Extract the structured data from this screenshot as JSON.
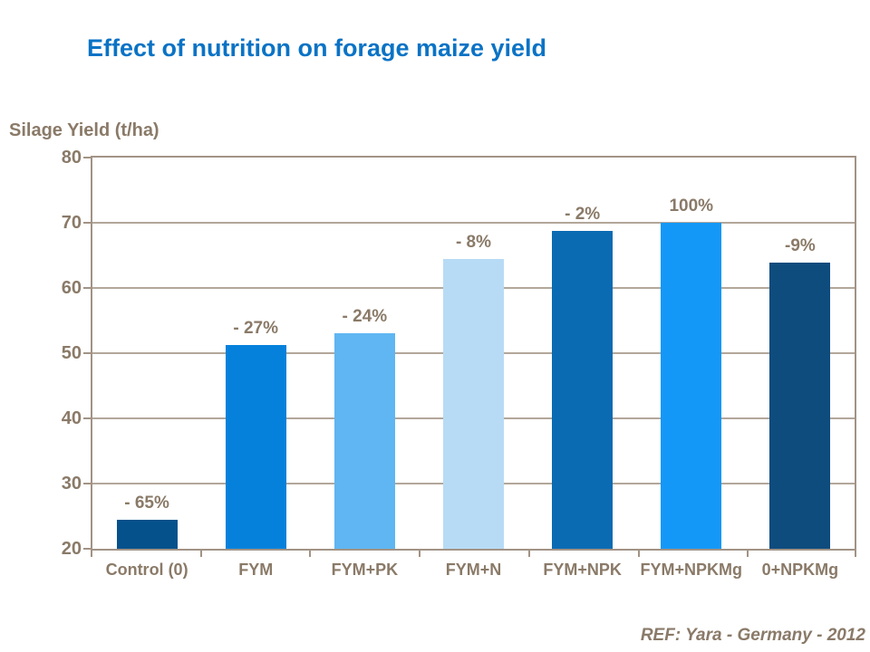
{
  "title": "Effect of nutrition on forage maize yield",
  "footer": "REF: Yara - Germany - 2012",
  "colors": {
    "title": "#0A73C5",
    "text": "#8A7A68",
    "axis": "#A29385",
    "grid": "#B3A79A",
    "background": "#FFFFFF"
  },
  "chart_data": {
    "type": "bar",
    "title": "Effect of nutrition on forage maize yield",
    "xlabel": "",
    "ylabel": "Silage Yield (t/ha)",
    "ylim": [
      20,
      80
    ],
    "ytick_step": 10,
    "grid": true,
    "legend": "none",
    "categories": [
      "Control (0)",
      "FYM",
      "FYM+PK",
      "FYM+N",
      "FYM+NPK",
      "FYM+NPKMg",
      "0+NPKMg"
    ],
    "values": [
      24.5,
      51.3,
      53.1,
      64.4,
      68.7,
      70,
      63.9
    ],
    "bar_labels": [
      "- 65%",
      "- 27%",
      "- 24%",
      "- 8%",
      "- 2%",
      "100%",
      "-9%"
    ],
    "bar_colors": [
      "#05518C",
      "#0581DB",
      "#5FB6F2",
      "#B7DBF5",
      "#0A6BB3",
      "#1498F7",
      "#0E4C7E"
    ]
  }
}
